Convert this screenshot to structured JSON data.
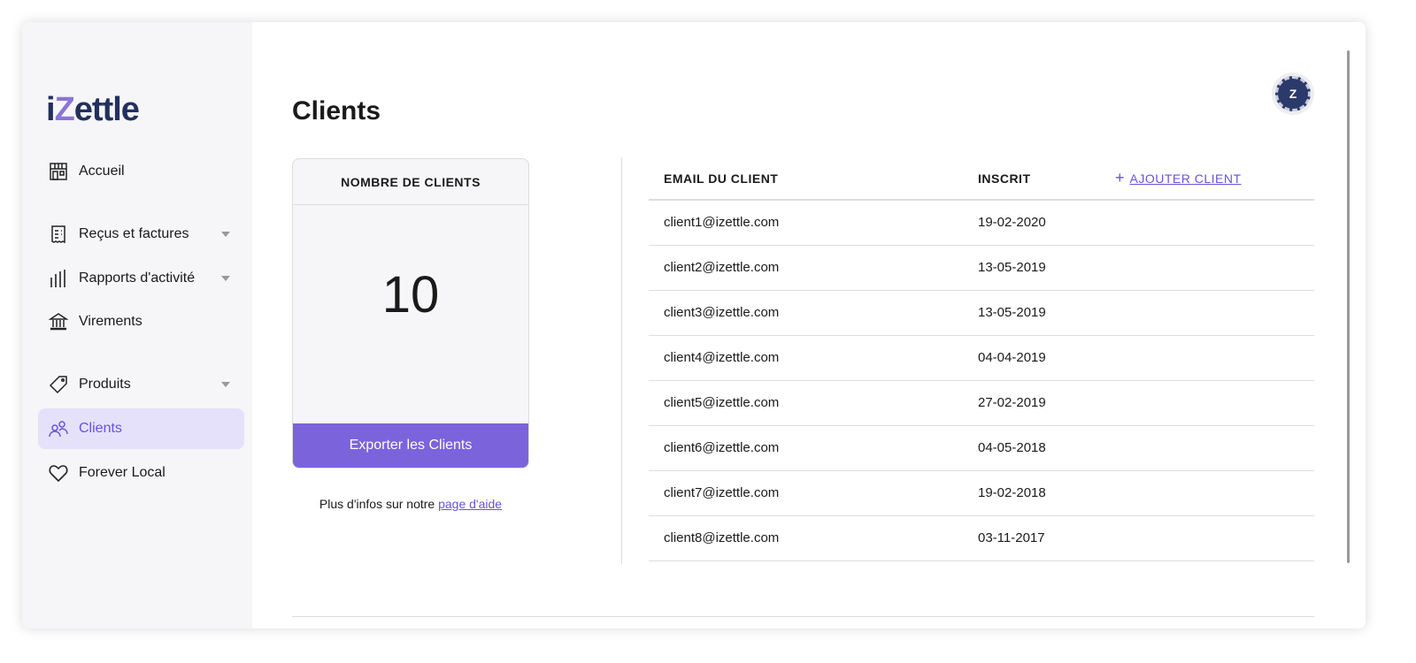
{
  "logo": {
    "text_a": "i",
    "text_z": "Z",
    "text_b": "ettle"
  },
  "sidebar": {
    "items": [
      {
        "label": "Accueil",
        "icon": "store-icon"
      },
      {
        "label": "Reçus et factures",
        "icon": "receipt-icon"
      },
      {
        "label": "Rapports d'activité",
        "icon": "bars-icon"
      },
      {
        "label": "Virements",
        "icon": "bank-icon"
      },
      {
        "label": "Produits",
        "icon": "tag-icon"
      },
      {
        "label": "Clients",
        "icon": "users-icon",
        "active": true
      },
      {
        "label": "Forever Local",
        "icon": "heart-icon"
      }
    ]
  },
  "page": {
    "title": "Clients",
    "avatar_letter": "Z"
  },
  "card": {
    "title": "NOMBRE DE CLIENTS",
    "count": "10",
    "export_label": "Exporter les Clients"
  },
  "help": {
    "text": "Plus d'infos sur notre ",
    "link": "page d'aide"
  },
  "table": {
    "headers": {
      "email": "EMAIL DU CLIENT",
      "registered": "INSCRIT",
      "add": "AJOUTER CLIENT"
    },
    "rows": [
      {
        "email": "client1@izettle.com",
        "date": "19-02-2020"
      },
      {
        "email": "client2@izettle.com",
        "date": "13-05-2019"
      },
      {
        "email": "client3@izettle.com",
        "date": "13-05-2019"
      },
      {
        "email": "client4@izettle.com",
        "date": "04-04-2019"
      },
      {
        "email": "client5@izettle.com",
        "date": "27-02-2019"
      },
      {
        "email": "client6@izettle.com",
        "date": "04-05-2018"
      },
      {
        "email": "client7@izettle.com",
        "date": "19-02-2018"
      },
      {
        "email": "client8@izettle.com",
        "date": "03-11-2017"
      }
    ]
  },
  "colors": {
    "accent": "#7b63dc",
    "brand": "#23305e",
    "sidebar_bg": "#f6f6f9"
  }
}
